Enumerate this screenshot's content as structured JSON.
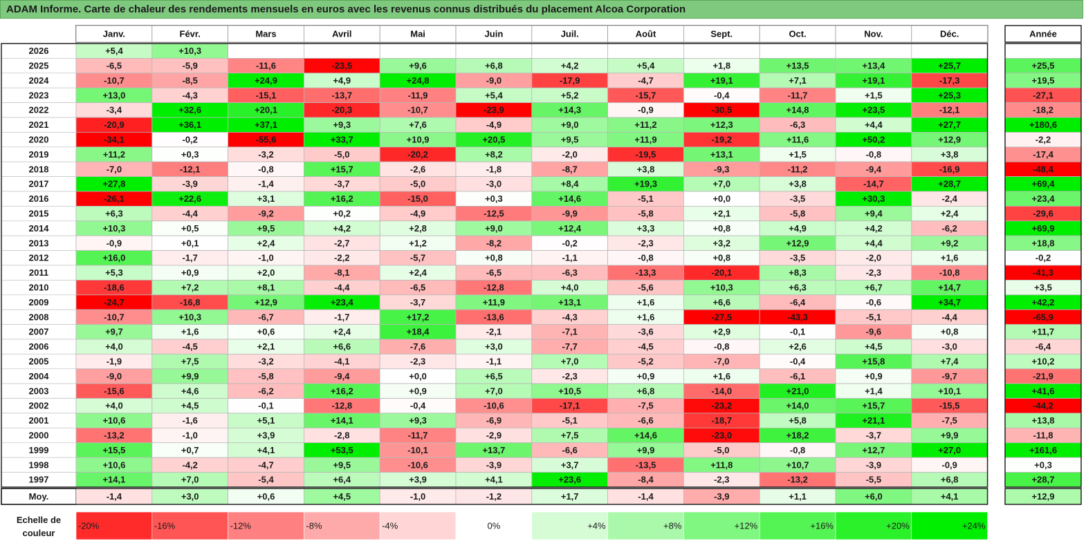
{
  "title": "ADAM Informe. Carte de chaleur des rendements mensuels en euros avec les revenus connus distribués du placement Alcoa Corporation",
  "chart_data": {
    "type": "heatmap",
    "columns": [
      "Janv.",
      "Févr.",
      "Mars",
      "Avril",
      "Mai",
      "Juin",
      "Juil.",
      "Août",
      "Sept.",
      "Oct.",
      "Nov.",
      "Déc."
    ],
    "year_column": "Année",
    "rows": [
      {
        "label": "2026",
        "values": [
          "+5,4",
          "+10,3",
          null,
          null,
          null,
          null,
          null,
          null,
          null,
          null,
          null,
          null
        ],
        "year": null
      },
      {
        "label": "2025",
        "values": [
          "-6,5",
          "-5,9",
          "-11,6",
          "-23,5",
          "+9,6",
          "+6,8",
          "+4,2",
          "+5,4",
          "+1,8",
          "+13,5",
          "+13,4",
          "+25,7"
        ],
        "year": "+25,5"
      },
      {
        "label": "2024",
        "values": [
          "-10,7",
          "-8,5",
          "+24,9",
          "+4,9",
          "+24,8",
          "-9,0",
          "-17,9",
          "-4,7",
          "+19,1",
          "+7,1",
          "+19,1",
          "-17,3"
        ],
        "year": "+19,5"
      },
      {
        "label": "2023",
        "values": [
          "+13,0",
          "-4,3",
          "-15,1",
          "-13,7",
          "-11,9",
          "+5,4",
          "+5,2",
          "-15,7",
          "-0,4",
          "-11,7",
          "+1,5",
          "+25,3"
        ],
        "year": "-27,1"
      },
      {
        "label": "2022",
        "values": [
          "-3,4",
          "+32,6",
          "+20,1",
          "-20,3",
          "-10,7",
          "-23,9",
          "+14,3",
          "-0,9",
          "-30,5",
          "+14,8",
          "+23,5",
          "-12,1"
        ],
        "year": "-18,2"
      },
      {
        "label": "2021",
        "values": [
          "-20,9",
          "+36,1",
          "+37,1",
          "+9,3",
          "+7,6",
          "-4,9",
          "+9,0",
          "+11,2",
          "+12,3",
          "-6,3",
          "+4,4",
          "+27,7"
        ],
        "year": "+180,6"
      },
      {
        "label": "2020",
        "values": [
          "-34,1",
          "-0,2",
          "-55,6",
          "+33,7",
          "+10,9",
          "+20,5",
          "+9,5",
          "+11,9",
          "-19,2",
          "+11,6",
          "+50,2",
          "+12,9"
        ],
        "year": "-2,2"
      },
      {
        "label": "2019",
        "values": [
          "+11,2",
          "+0,3",
          "-3,2",
          "-5,0",
          "-20,2",
          "+8,2",
          "-2,0",
          "-19,5",
          "+13,1",
          "+1,5",
          "-0,8",
          "+3,8"
        ],
        "year": "-17,4"
      },
      {
        "label": "2018",
        "values": [
          "-7,0",
          "-12,1",
          "-0,8",
          "+15,7",
          "-2,6",
          "-1,8",
          "-8,7",
          "+3,8",
          "-9,3",
          "-11,2",
          "-9,4",
          "-16,9"
        ],
        "year": "-48,4"
      },
      {
        "label": "2017",
        "values": [
          "+27,8",
          "-3,9",
          "-1,4",
          "-3,7",
          "-5,0",
          "-3,0",
          "+8,4",
          "+19,3",
          "+7,0",
          "+3,8",
          "-14,7",
          "+28,7"
        ],
        "year": "+69,4"
      },
      {
        "label": "2016",
        "values": [
          "-26,1",
          "+22,6",
          "+3,1",
          "+16,2",
          "-15,0",
          "+0,3",
          "+14,6",
          "-5,1",
          "+0,0",
          "-3,5",
          "+30,3",
          "-2,4"
        ],
        "year": "+23,4"
      },
      {
        "label": "2015",
        "values": [
          "+6,3",
          "-4,4",
          "-9,2",
          "+0,2",
          "-4,9",
          "-12,5",
          "-9,9",
          "-5,8",
          "+2,1",
          "-5,8",
          "+9,4",
          "+2,4"
        ],
        "year": "-29,6"
      },
      {
        "label": "2014",
        "values": [
          "+10,3",
          "+0,5",
          "+9,5",
          "+4,2",
          "+2,8",
          "+9,0",
          "+12,4",
          "+3,3",
          "+0,8",
          "+4,9",
          "+4,2",
          "-6,2"
        ],
        "year": "+69,9"
      },
      {
        "label": "2013",
        "values": [
          "-0,9",
          "+0,1",
          "+2,4",
          "-2,7",
          "+1,2",
          "-8,2",
          "-0,2",
          "-2,3",
          "+3,2",
          "+12,9",
          "+4,4",
          "+9,2"
        ],
        "year": "+18,8"
      },
      {
        "label": "2012",
        "values": [
          "+16,0",
          "-1,7",
          "-1,0",
          "-2,2",
          "-5,7",
          "+0,8",
          "-1,1",
          "-0,8",
          "+0,8",
          "-3,5",
          "-2,0",
          "+1,6"
        ],
        "year": "-0,2"
      },
      {
        "label": "2011",
        "values": [
          "+5,3",
          "+0,9",
          "+2,0",
          "-8,1",
          "+2,4",
          "-6,5",
          "-6,3",
          "-13,3",
          "-20,1",
          "+8,3",
          "-2,3",
          "-10,8"
        ],
        "year": "-41,3"
      },
      {
        "label": "2010",
        "values": [
          "-18,6",
          "+7,2",
          "+8,1",
          "-4,4",
          "-6,5",
          "-12,8",
          "+4,0",
          "-5,6",
          "+10,3",
          "+6,3",
          "+6,7",
          "+14,7"
        ],
        "year": "+3,5"
      },
      {
        "label": "2009",
        "values": [
          "-24,7",
          "-16,8",
          "+12,9",
          "+23,4",
          "-3,7",
          "+11,9",
          "+13,1",
          "+1,6",
          "+6,6",
          "-6,4",
          "-0,6",
          "+34,7"
        ],
        "year": "+42,2"
      },
      {
        "label": "2008",
        "values": [
          "-10,7",
          "+10,3",
          "-6,7",
          "-1,7",
          "+17,2",
          "-13,6",
          "-4,3",
          "+1,6",
          "-27,5",
          "-43,3",
          "-5,1",
          "-4,4"
        ],
        "year": "-65,9"
      },
      {
        "label": "2007",
        "values": [
          "+9,7",
          "+1,6",
          "+0,6",
          "+2,4",
          "+18,4",
          "-2,1",
          "-7,1",
          "-3,6",
          "+2,9",
          "-0,1",
          "-9,6",
          "+0,8"
        ],
        "year": "+11,7"
      },
      {
        "label": "2006",
        "values": [
          "+4,0",
          "-4,5",
          "+2,1",
          "+6,6",
          "-7,6",
          "+3,0",
          "-7,7",
          "-4,5",
          "-0,8",
          "+2,6",
          "+4,5",
          "-3,0"
        ],
        "year": "-6,4"
      },
      {
        "label": "2005",
        "values": [
          "-1,9",
          "+7,5",
          "-3,2",
          "-4,1",
          "-2,3",
          "-1,1",
          "+7,0",
          "-5,2",
          "-7,0",
          "-0,4",
          "+15,8",
          "+7,4"
        ],
        "year": "+10,2"
      },
      {
        "label": "2004",
        "values": [
          "-9,0",
          "+9,9",
          "-5,8",
          "-9,4",
          "+0,0",
          "+6,5",
          "-2,3",
          "+0,9",
          "+1,6",
          "-6,1",
          "+0,9",
          "-9,7"
        ],
        "year": "-21,9"
      },
      {
        "label": "2003",
        "values": [
          "-15,6",
          "+4,6",
          "-6,2",
          "+16,2",
          "+0,9",
          "+7,0",
          "+10,5",
          "+6,8",
          "-14,0",
          "+21,0",
          "+1,4",
          "+10,1"
        ],
        "year": "+41,6"
      },
      {
        "label": "2002",
        "values": [
          "+4,0",
          "+4,5",
          "-0,1",
          "-12,8",
          "-0,4",
          "-10,6",
          "-17,1",
          "-7,5",
          "-23,2",
          "+14,0",
          "+15,7",
          "-15,5"
        ],
        "year": "-44,2"
      },
      {
        "label": "2001",
        "values": [
          "+10,6",
          "-1,6",
          "+5,1",
          "+14,1",
          "+9,3",
          "-6,9",
          "-5,1",
          "-6,6",
          "-18,7",
          "+5,8",
          "+21,1",
          "-7,5"
        ],
        "year": "+13,8"
      },
      {
        "label": "2000",
        "values": [
          "-13,2",
          "-1,0",
          "+3,9",
          "-2,8",
          "-11,7",
          "-2,9",
          "+7,5",
          "+14,6",
          "-23,0",
          "+18,2",
          "-3,7",
          "+9,9"
        ],
        "year": "-11,8"
      },
      {
        "label": "1999",
        "values": [
          "+15,5",
          "+0,7",
          "+4,1",
          "+53,5",
          "-10,1",
          "+13,7",
          "-6,6",
          "+9,9",
          "-5,0",
          "-0,8",
          "+12,7",
          "+27,0"
        ],
        "year": "+161,6"
      },
      {
        "label": "1998",
        "values": [
          "+10,6",
          "-4,2",
          "-4,7",
          "+9,5",
          "-10,6",
          "-3,9",
          "+3,7",
          "-13,5",
          "+11,8",
          "+10,7",
          "-3,9",
          "-0,9"
        ],
        "year": "+0,3"
      },
      {
        "label": "1997",
        "values": [
          "+14,1",
          "+7,0",
          "-5,4",
          "+6,4",
          "+3,9",
          "+4,1",
          "+23,6",
          "-8,4",
          "-2,3",
          "-13,2",
          "-5,5",
          "+6,8"
        ],
        "year": "+28,7"
      }
    ],
    "average": {
      "label": "Moy.",
      "values": [
        "-1,4",
        "+3,0",
        "+0,6",
        "+4,5",
        "-1,0",
        "-1,2",
        "+1,7",
        "-1,4",
        "-3,9",
        "+1,1",
        "+6,0",
        "+4,1"
      ],
      "year": "+12,9"
    },
    "color_scale": {
      "label": "Echelle de couleur",
      "stops": [
        "-20%",
        "-16%",
        "-12%",
        "-8%",
        "-4%",
        "0%",
        "+4%",
        "+8%",
        "+12%",
        "+16%",
        "+20%",
        "+24%"
      ],
      "negative_color": "#ff0000",
      "neutral_color": "#ffffff",
      "positive_color": "#00ee00"
    }
  }
}
